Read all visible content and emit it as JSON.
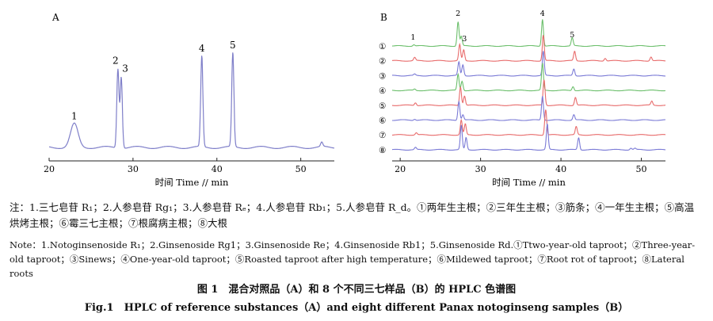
{
  "chart_data": [
    {
      "type": "line",
      "panel_label": "A",
      "xlabel": "时间 Time // min",
      "xlim": [
        20,
        54
      ],
      "x_ticks": [
        20,
        30,
        40,
        50
      ],
      "baseline_color": "#7f7fc9",
      "peaks": [
        {
          "label": "1",
          "x": 23.0,
          "height": 0.21
        },
        {
          "label": "2",
          "x": 28.2,
          "height": 0.71
        },
        {
          "label": "3",
          "x": 28.6,
          "height": 0.64
        },
        {
          "label": "4",
          "x": 38.2,
          "height": 0.82
        },
        {
          "label": "5",
          "x": 41.9,
          "height": 0.85
        },
        {
          "label": "",
          "x": 52.5,
          "height": 0.04
        }
      ]
    },
    {
      "type": "line",
      "panel_label": "B",
      "xlabel": "时间 Time // min",
      "xlim": [
        19,
        53
      ],
      "x_ticks": [
        20,
        30,
        40,
        50
      ],
      "top_peak_labels": [
        {
          "label": "1",
          "x": 21.6
        },
        {
          "label": "2",
          "x": 27.2
        },
        {
          "label": "3",
          "x": 27.7
        },
        {
          "label": "4",
          "x": 37.7
        },
        {
          "label": "5",
          "x": 41.4
        }
      ],
      "series": [
        {
          "name": "①",
          "color": "#6cbf6c",
          "peaks": [
            [
              21.7,
              0.05
            ],
            [
              27.2,
              0.9
            ],
            [
              27.6,
              0.35
            ],
            [
              37.7,
              1.0
            ],
            [
              41.4,
              0.3
            ]
          ]
        },
        {
          "name": "②",
          "color": "#e86c6c",
          "peaks": [
            [
              21.8,
              0.12
            ],
            [
              27.4,
              0.6
            ],
            [
              27.9,
              0.4
            ],
            [
              37.8,
              0.95
            ],
            [
              41.7,
              0.35
            ],
            [
              45.5,
              0.1
            ],
            [
              51.2,
              0.15
            ]
          ]
        },
        {
          "name": "③",
          "color": "#7a7ad6",
          "peaks": [
            [
              21.8,
              0.05
            ],
            [
              27.3,
              0.5
            ],
            [
              27.8,
              0.4
            ],
            [
              37.8,
              0.9
            ],
            [
              41.6,
              0.25
            ]
          ]
        },
        {
          "name": "④",
          "color": "#6cbf6c",
          "peaks": [
            [
              21.8,
              0.05
            ],
            [
              27.2,
              0.6
            ],
            [
              27.7,
              0.35
            ],
            [
              37.7,
              1.0
            ],
            [
              41.5,
              0.15
            ]
          ]
        },
        {
          "name": "⑤",
          "color": "#e86c6c",
          "peaks": [
            [
              21.9,
              0.1
            ],
            [
              27.5,
              0.7
            ],
            [
              28.0,
              0.35
            ],
            [
              37.9,
              0.95
            ],
            [
              41.8,
              0.3
            ],
            [
              51.3,
              0.15
            ]
          ]
        },
        {
          "name": "⑥",
          "color": "#7a7ad6",
          "peaks": [
            [
              21.8,
              0.04
            ],
            [
              27.3,
              0.7
            ],
            [
              27.8,
              0.2
            ],
            [
              37.7,
              0.9
            ],
            [
              41.6,
              0.2
            ]
          ]
        },
        {
          "name": "⑦",
          "color": "#e86c6c",
          "peaks": [
            [
              22.0,
              0.08
            ],
            [
              27.6,
              0.55
            ],
            [
              28.1,
              0.4
            ],
            [
              38.1,
              0.95
            ],
            [
              41.9,
              0.3
            ]
          ]
        },
        {
          "name": "⑧",
          "color": "#7a7ad6",
          "peaks": [
            [
              21.9,
              0.08
            ],
            [
              27.6,
              0.9
            ],
            [
              28.2,
              0.45
            ],
            [
              38.3,
              0.95
            ],
            [
              42.2,
              0.45
            ],
            [
              48.7,
              0.06
            ],
            [
              49.2,
              0.05
            ]
          ]
        }
      ]
    }
  ],
  "caption": {
    "zh_notes": "注：1.三七皂苷 R₁；2.人参皂苷 Rg₁；3.人参皂苷 Rₑ；4.人参皂苷 Rb₁；5.人参皂苷 R_d。①两年生主根；②三年生主根；③筋条；④一年生主根；⑤高温烘烤主根；⑥霉三七主根；⑦根腐病主根；⑧大根",
    "en_notes": "Note：1.Notoginsenoside R₁；2.Ginsenoside Rg1；3.Ginsenoside Re；4.Ginsenoside Rb1；5.Ginsenoside Rd.①Ttwo-year-old taproot；②Three-year-old taproot；③Sinews；④One-year-old taproot；⑤Roasted taproot after high temperature；⑥Mildewed taproot；⑦Root rot of taproot；⑧Lateral roots",
    "title_zh": "图 1　混合对照品（A）和 8 个不同三七样品（B）的 HPLC 色谱图",
    "title_en": "Fig.1　HPLC of reference substances（A）and eight different Panax notoginseng samples（B）"
  }
}
